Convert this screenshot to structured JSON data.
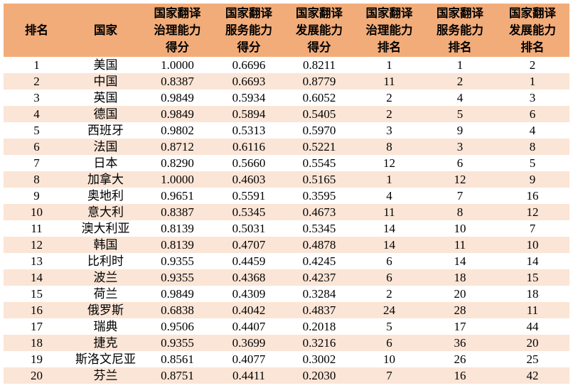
{
  "table": {
    "columns": [
      "排名",
      "国家",
      "国家翻译\n治理能力\n得分",
      "国家翻译\n服务能力\n得分",
      "国家翻译\n发展能力\n得分",
      "国家翻译\n治理能力\n排名",
      "国家翻译\n服务能力\n排名",
      "国家翻译\n发展能力\n排名"
    ],
    "rows": [
      [
        "1",
        "美国",
        "1.0000",
        "0.6696",
        "0.8211",
        "1",
        "1",
        "2"
      ],
      [
        "2",
        "中国",
        "0.8387",
        "0.6693",
        "0.8779",
        "11",
        "2",
        "1"
      ],
      [
        "3",
        "英国",
        "0.9849",
        "0.5934",
        "0.6052",
        "2",
        "4",
        "3"
      ],
      [
        "4",
        "德国",
        "0.9849",
        "0.5894",
        "0.5405",
        "2",
        "5",
        "6"
      ],
      [
        "5",
        "西班牙",
        "0.9802",
        "0.5313",
        "0.5970",
        "3",
        "9",
        "4"
      ],
      [
        "6",
        "法国",
        "0.8712",
        "0.6116",
        "0.5221",
        "8",
        "3",
        "8"
      ],
      [
        "7",
        "日本",
        "0.8290",
        "0.5660",
        "0.5545",
        "12",
        "6",
        "5"
      ],
      [
        "8",
        "加拿大",
        "1.0000",
        "0.4603",
        "0.5165",
        "1",
        "12",
        "9"
      ],
      [
        "9",
        "奥地利",
        "0.9651",
        "0.5591",
        "0.3595",
        "4",
        "7",
        "16"
      ],
      [
        "10",
        "意大利",
        "0.8387",
        "0.5345",
        "0.4673",
        "11",
        "8",
        "12"
      ],
      [
        "11",
        "澳大利亚",
        "0.8139",
        "0.5031",
        "0.5345",
        "14",
        "10",
        "7"
      ],
      [
        "12",
        "韩国",
        "0.8139",
        "0.4707",
        "0.4878",
        "14",
        "11",
        "10"
      ],
      [
        "13",
        "比利时",
        "0.9355",
        "0.4459",
        "0.4245",
        "6",
        "14",
        "14"
      ],
      [
        "14",
        "波兰",
        "0.9355",
        "0.4368",
        "0.4237",
        "6",
        "18",
        "15"
      ],
      [
        "15",
        "荷兰",
        "0.9849",
        "0.4309",
        "0.3284",
        "2",
        "20",
        "18"
      ],
      [
        "16",
        "俄罗斯",
        "0.6838",
        "0.4042",
        "0.4837",
        "24",
        "28",
        "11"
      ],
      [
        "17",
        "瑞典",
        "0.9506",
        "0.4407",
        "0.2018",
        "5",
        "17",
        "44"
      ],
      [
        "18",
        "捷克",
        "0.9355",
        "0.3699",
        "0.3216",
        "6",
        "36",
        "20"
      ],
      [
        "19",
        "斯洛文尼亚",
        "0.8561",
        "0.4077",
        "0.3002",
        "10",
        "26",
        "25"
      ],
      [
        "20",
        "芬兰",
        "0.8751",
        "0.4411",
        "0.2030",
        "7",
        "16",
        "42"
      ]
    ]
  },
  "colors": {
    "header_bg": "#F2AC79",
    "alt_row_bg": "#FBE5D6",
    "row_bg": "#FFFFFF",
    "text": "#000000"
  }
}
